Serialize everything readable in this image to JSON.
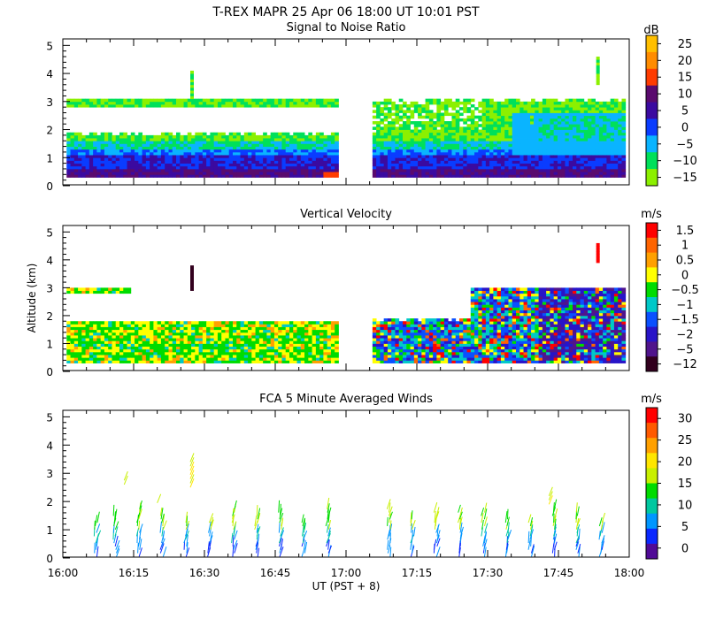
{
  "header": {
    "title": "T-REX   MAPR 25 Apr 06   18:00 UT   10:01   PST"
  },
  "x_axis": {
    "label": "UT  (PST + 8)",
    "ticks": [
      "16:00",
      "16:15",
      "16:30",
      "16:45",
      "17:00",
      "17:15",
      "17:30",
      "17:45",
      "18:00"
    ]
  },
  "y_axis": {
    "label": "Altitude (km)",
    "ticks": [
      "0",
      "1",
      "2",
      "3",
      "4",
      "5"
    ]
  },
  "chart_data": [
    {
      "type": "heatmap",
      "title": "Signal to Noise Ratio",
      "ylabel": "Altitude (km)",
      "xlabel": "UT  (PST + 8)",
      "x_range": [
        "16:00",
        "18:00"
      ],
      "ylim": [
        0,
        5
      ],
      "colorbar": {
        "unit": "dB",
        "labels": [
          "25",
          "20",
          "15",
          "10",
          "5",
          "0",
          "−5",
          "−10",
          "−15"
        ],
        "colors": [
          "#ffbf00",
          "#ff8c00",
          "#ff3c00",
          "#5a0a6e",
          "#3b0aa0",
          "#0a3cff",
          "#0ab4ff",
          "#00e05a",
          "#8cf000"
        ]
      },
      "data_gap": [
        "16:58",
        "17:05"
      ],
      "description_layers": [
        {
          "level": "-15",
          "x": [
            "16:01",
            "16:58"
          ],
          "y": [
            0.3,
            1.8
          ]
        },
        {
          "level": "-15",
          "x": [
            "16:01",
            "16:58"
          ],
          "y": [
            2.8,
            3.0
          ]
        },
        {
          "level": "-15",
          "x": [
            "17:05",
            "17:58"
          ],
          "y": [
            0.3,
            3.0
          ]
        }
      ]
    },
    {
      "type": "heatmap",
      "title": "Vertical Velocity",
      "ylabel": "Altitude (km)",
      "xlabel": "UT  (PST + 8)",
      "x_range": [
        "16:00",
        "18:00"
      ],
      "ylim": [
        0,
        5
      ],
      "colorbar": {
        "unit": "m/s",
        "labels": [
          "1.5",
          "1",
          "0.5",
          "0",
          "−0.5",
          "−1",
          "−1.5",
          "−2",
          "−5",
          "−12"
        ],
        "colors": [
          "#ff0000",
          "#ff6400",
          "#ffa000",
          "#ffff00",
          "#00dc00",
          "#00c8c8",
          "#0a50ff",
          "#2814c8",
          "#50148c",
          "#32001e"
        ]
      },
      "data_gap": [
        "16:58",
        "17:05"
      ]
    },
    {
      "type": "scatter",
      "title": "FCA 5 Minute Averaged Winds",
      "ylabel": "Altitude (km)",
      "xlabel": "UT  (PST + 8)",
      "x_range": [
        "16:00",
        "18:00"
      ],
      "ylim": [
        0,
        5
      ],
      "marks": "wind barbs",
      "colorbar": {
        "unit": "m/s",
        "labels": [
          "30",
          "25",
          "20",
          "15",
          "10",
          "5",
          "0"
        ],
        "colors": [
          "#ff0000",
          "#ff5a00",
          "#ffa000",
          "#ffe600",
          "#c8f000",
          "#00dc00",
          "#00c8a0",
          "#0096ff",
          "#0a28ff",
          "#500a96"
        ]
      },
      "barb_times": [
        "16:07",
        "16:11",
        "16:16",
        "16:21",
        "16:26",
        "16:31",
        "16:36",
        "16:41",
        "16:46",
        "16:51",
        "16:56",
        "17:09",
        "17:14",
        "17:19",
        "17:24",
        "17:29",
        "17:34",
        "17:39",
        "17:44",
        "17:49",
        "17:54"
      ]
    }
  ]
}
